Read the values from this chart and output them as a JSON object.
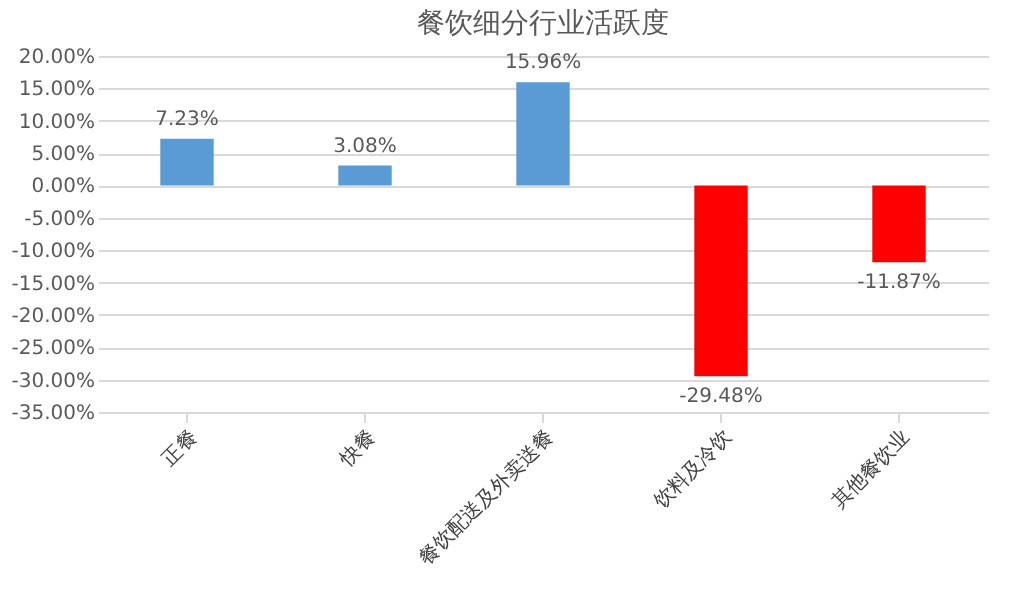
{
  "chart_data": {
    "type": "bar",
    "title": "餐饮细分行业活跃度",
    "categories": [
      "正餐",
      "快餐",
      "餐饮配送及外卖送餐",
      "饮料及冷饮",
      "其他餐饮业"
    ],
    "values": [
      7.23,
      3.08,
      15.96,
      -29.48,
      -11.87
    ],
    "colors": [
      "#5b9bd5",
      "#5b9bd5",
      "#5b9bd5",
      "#ff0000",
      "#ff0000"
    ],
    "value_labels": [
      "7.23%",
      "3.08%",
      "15.96%",
      "-29.48%",
      "-11.87%"
    ],
    "ylim": [
      -35,
      20
    ],
    "yticks": [
      {
        "value": -35,
        "label": "-35.00%"
      },
      {
        "value": -30,
        "label": "-30.00%"
      },
      {
        "value": -25,
        "label": "-25.00%"
      },
      {
        "value": -20,
        "label": "-20.00%"
      },
      {
        "value": -15,
        "label": "-15.00%"
      },
      {
        "value": -10,
        "label": "-10.00%"
      },
      {
        "value": -5,
        "label": "-5.00%"
      },
      {
        "value": 0,
        "label": "0.00%"
      },
      {
        "value": 5,
        "label": "5.00%"
      },
      {
        "value": 10,
        "label": "10.00%"
      },
      {
        "value": 15,
        "label": "15.00%"
      },
      {
        "value": 20,
        "label": "20.00%"
      }
    ],
    "grid": "y"
  }
}
